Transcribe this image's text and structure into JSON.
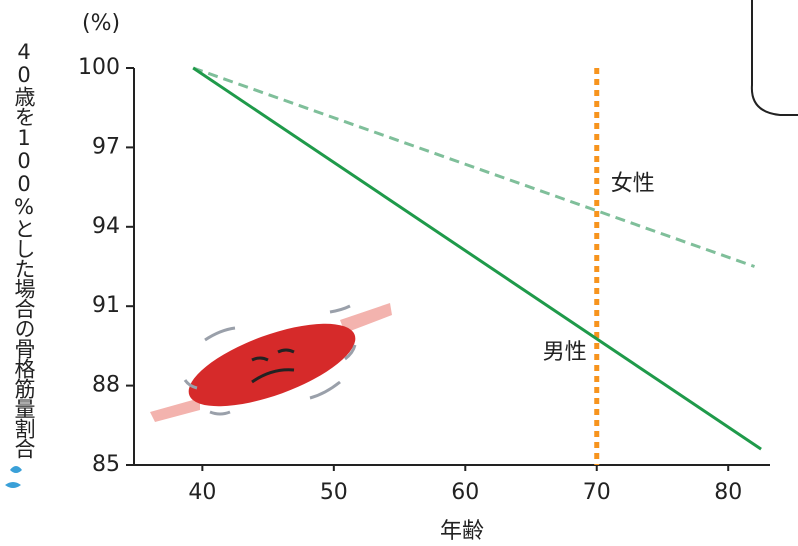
{
  "chart_data": {
    "type": "line",
    "y_label": "40歳を100%とした場合の骨格筋量割合",
    "y_unit": "(%)",
    "x_label": "年齢",
    "series": [
      {
        "name": "女性",
        "color": "#7fbf9a",
        "dashed": true,
        "x": [
          39.3,
          82
        ],
        "values": [
          100,
          92.5
        ]
      },
      {
        "name": "男性",
        "color": "#1f9a4a",
        "dashed": false,
        "x": [
          39.3,
          82.5
        ],
        "values": [
          100,
          85.6
        ]
      }
    ],
    "vline": {
      "x": 70,
      "color": "#f7941d"
    },
    "xlim": [
      34.8,
      84.7
    ],
    "xticks": [
      40,
      50,
      60,
      70,
      80
    ],
    "ylim": [
      85,
      100
    ],
    "yticks": [
      85,
      88,
      91,
      94,
      97,
      100
    ]
  }
}
